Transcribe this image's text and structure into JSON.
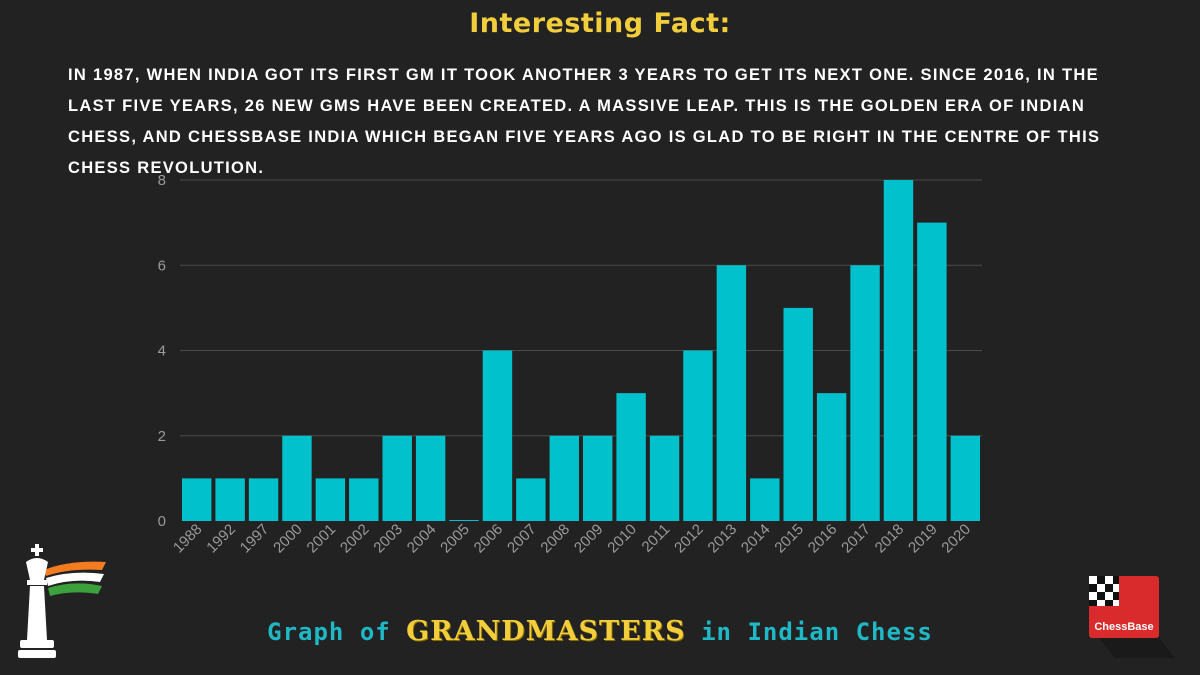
{
  "header": {
    "title": "Interesting Fact:",
    "fact": "In 1987, when India got its first GM it took another 3 years to get its next one. Since 2016, in the last five years, 26 new GMs have been created. A massive leap. This is the golden era of Indian chess, and ChessBase India which began five years ago is glad to be right in the centre of this chess revolution."
  },
  "footer": {
    "prefix": "Graph of",
    "highlight": "GRANDMASTERS",
    "suffix": "in Indian Chess"
  },
  "logo": {
    "text": "ChessBase"
  },
  "colors": {
    "background": "#222222",
    "bar": "#00C1CC",
    "title": "#F2CE3C",
    "footer": "#1FB8C6",
    "grid": "#4a4a4a",
    "axis_text": "#9a9a9a"
  },
  "chart_data": {
    "type": "bar",
    "categories": [
      "1988",
      "1992",
      "1997",
      "2000",
      "2001",
      "2002",
      "2003",
      "2004",
      "2005",
      "2006",
      "2007",
      "2008",
      "2009",
      "2010",
      "2011",
      "2012",
      "2013",
      "2014",
      "2015",
      "2016",
      "2017",
      "2018",
      "2019",
      "2020"
    ],
    "values": [
      1,
      1,
      1,
      2,
      1,
      1,
      2,
      2,
      0,
      4,
      1,
      2,
      2,
      3,
      2,
      4,
      6,
      1,
      5,
      3,
      6,
      8,
      7,
      2
    ],
    "yticks": [
      0,
      2,
      4,
      6,
      8
    ],
    "ylim": [
      0,
      8
    ],
    "grid": true,
    "title": "",
    "xlabel": "",
    "ylabel": ""
  }
}
